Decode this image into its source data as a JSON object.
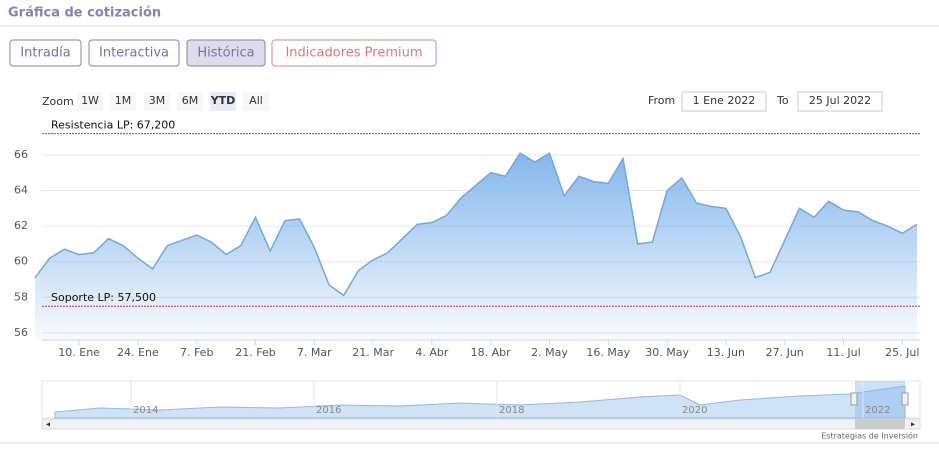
{
  "header": {
    "title": "Gráfica de cotización"
  },
  "tabs": [
    "Intradía",
    "Interactiva",
    "Histórica",
    "Indicadores Premium"
  ],
  "zoom": {
    "label": "Zoom",
    "buttons": [
      "1W",
      "1M",
      "3M",
      "6M",
      "YTD",
      "All"
    ]
  },
  "range": {
    "from_label": "From",
    "from": "1 Ene 2022",
    "to_label": "To",
    "to": "25 Jul 2022"
  },
  "navigator": {
    "years": [
      "2014",
      "2016",
      "2018",
      "2020",
      "2022"
    ]
  },
  "credits": "Estrategias de Inversión",
  "chart_data": {
    "type": "area",
    "color": "#6fa8e6",
    "categories": [
      null,
      null,
      null,
      "10. Ene",
      null,
      null,
      null,
      "24. Ene",
      null,
      null,
      null,
      "7. Feb",
      null,
      null,
      null,
      "21. Feb",
      null,
      null,
      null,
      "7. Mar",
      null,
      null,
      null,
      "21. Mar",
      null,
      null,
      null,
      "4. Abr",
      null,
      null,
      null,
      "18. Abr",
      null,
      null,
      null,
      "2. May",
      null,
      null,
      null,
      "16. May",
      null,
      null,
      null,
      "30. May",
      null,
      null,
      null,
      "13. Jun",
      null,
      null,
      null,
      "27. Jun",
      null,
      null,
      null,
      "11. Jul",
      null,
      null,
      null,
      "25. Jul",
      null
    ],
    "values": [
      59.1,
      60.2,
      60.7,
      60.4,
      60.5,
      61.3,
      60.9,
      60.2,
      59.6,
      60.9,
      61.2,
      61.5,
      61.1,
      60.4,
      60.9,
      62.5,
      60.6,
      62.3,
      62.4,
      60.8,
      58.7,
      58.1,
      59.5,
      60.1,
      60.5,
      61.3,
      62.1,
      62.2,
      62.6,
      63.6,
      64.3,
      65.0,
      64.8,
      66.1,
      65.6,
      66.1,
      63.7,
      64.8,
      64.5,
      64.4,
      65.8,
      61.0,
      61.1,
      64.0,
      64.7,
      63.3,
      63.1,
      63.0,
      61.4,
      59.1,
      59.4,
      61.2,
      63.0,
      62.5,
      63.4,
      62.9,
      62.8,
      62.3,
      62.0,
      61.6,
      62.1
    ],
    "ylim": [
      55.6,
      67.85
    ],
    "yticks": [
      56,
      58,
      60,
      62,
      64,
      66
    ],
    "grid": true,
    "plot_lines": [
      {
        "value": 67.2,
        "label": "Resistencia LP: 67,200",
        "color": "#2e8b2e"
      },
      {
        "value": 57.5,
        "label": "Soporte LP: 57,500",
        "color": "#c0305a"
      }
    ]
  }
}
